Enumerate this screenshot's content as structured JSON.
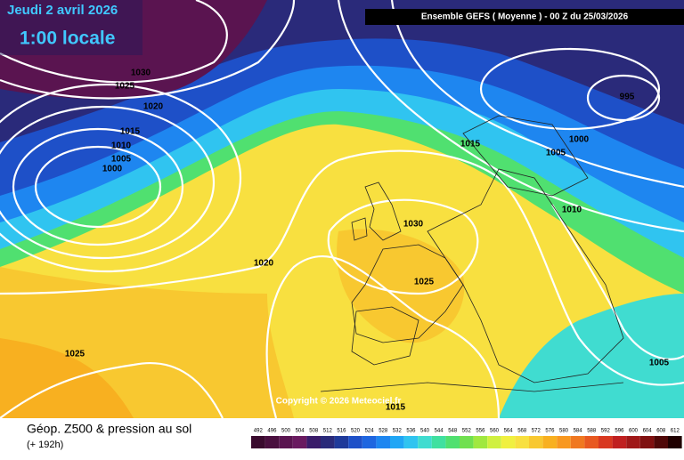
{
  "header": {
    "date": "Jeudi 2 avril 2026",
    "time": "1:00 locale",
    "run": "Ensemble GEFS  ( Moyenne )  -  00 Z du 25/03/2026"
  },
  "isobar_labels": [
    "1030",
    "1025",
    "1020",
    "1015",
    "1010",
    "1005",
    "1000",
    "1030",
    "1020",
    "1025",
    "1025",
    "1015",
    "1005",
    "1000",
    "995",
    "1010",
    "1005",
    "1015"
  ],
  "copyright": "Copyright © 2026 Meteociel.fr",
  "footer": {
    "title": "Géop. Z500 & pression au sol",
    "lead": "(+ 192h)"
  },
  "legend": {
    "labels": [
      492,
      496,
      500,
      504,
      508,
      512,
      516,
      520,
      524,
      528,
      532,
      536,
      540,
      544,
      548,
      552,
      556,
      560,
      564,
      568,
      572,
      576,
      580,
      584,
      588,
      592,
      596,
      600,
      604,
      608,
      612
    ],
    "colors": [
      "#3a0a2e",
      "#4a0f3f",
      "#5a1450",
      "#6a1a60",
      "#3a1c6a",
      "#2a2a7a",
      "#1f3a9a",
      "#1e50c8",
      "#1f66e0",
      "#1e86f0",
      "#20a6f5",
      "#30c4f0",
      "#40dcd0",
      "#40e0a0",
      "#50e070",
      "#70e050",
      "#a0e840",
      "#d0f040",
      "#f0f040",
      "#f8e040",
      "#f8c830",
      "#f8b020",
      "#f89820",
      "#f07820",
      "#e85820",
      "#d83820",
      "#c02020",
      "#a01818",
      "#801010",
      "#500808",
      "#200000"
    ]
  }
}
